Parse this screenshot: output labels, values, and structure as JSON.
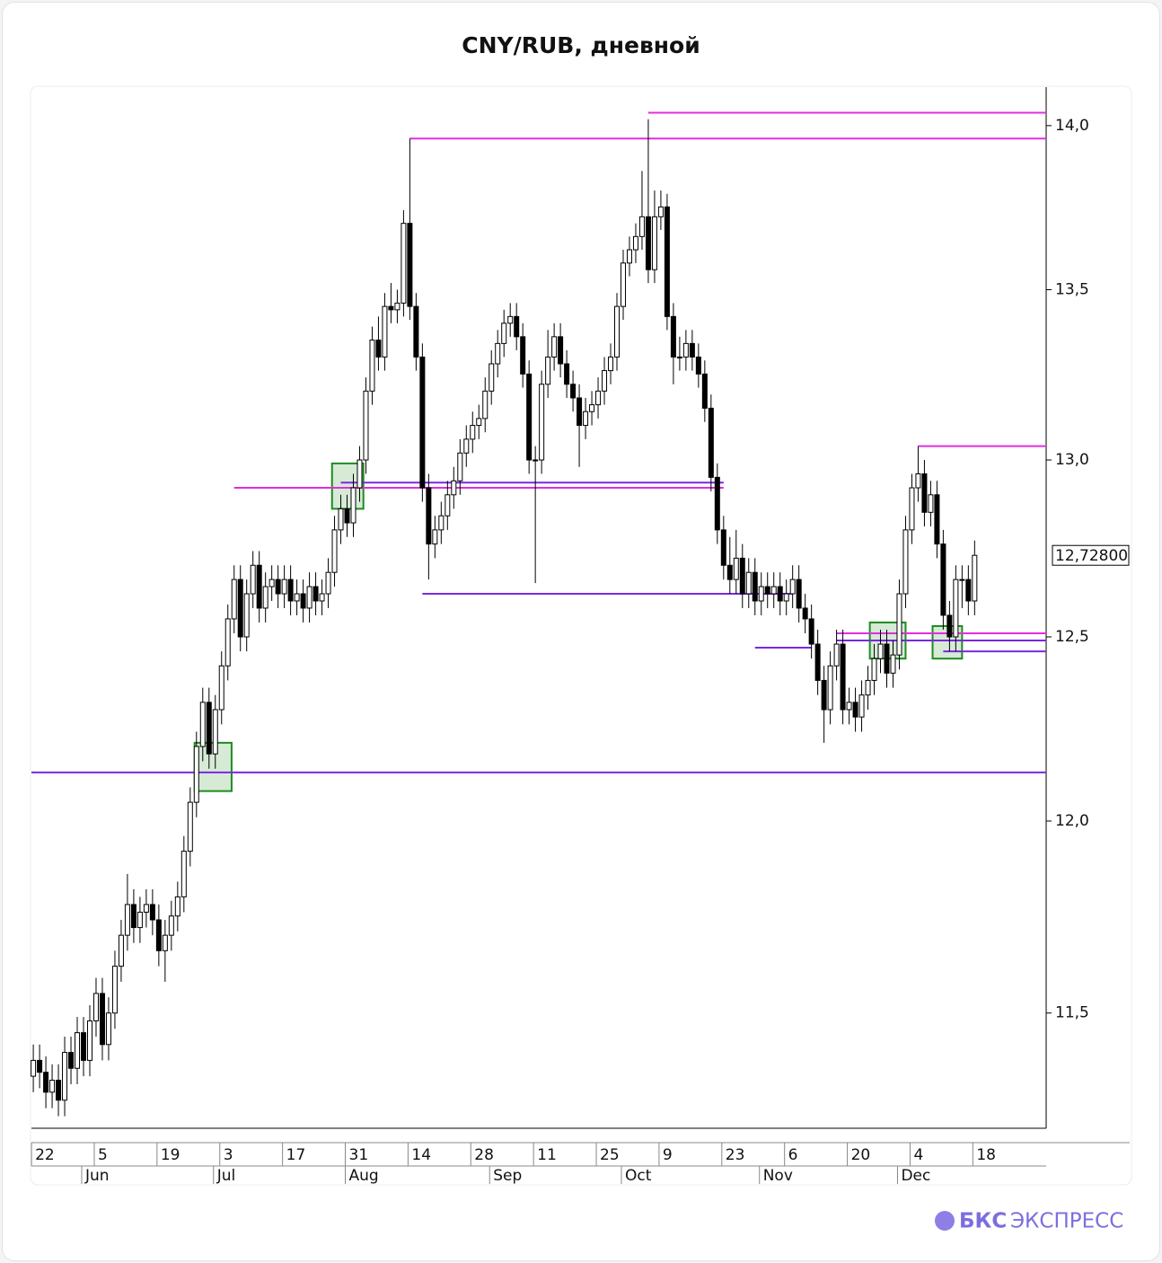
{
  "chart_data": {
    "type": "candlestick",
    "title": "CNY/RUB, дневной",
    "log_scale": true,
    "ylim": [
      11.21,
      14.12
    ],
    "xlim": [
      -0.3,
      161.4
    ],
    "yticks": [
      {
        "value": 11.5,
        "label": "11,5"
      },
      {
        "value": 12.0,
        "label": "12,0"
      },
      {
        "value": 12.5,
        "label": "12,5"
      },
      {
        "value": 13.0,
        "label": "13,0"
      },
      {
        "value": 13.5,
        "label": "13,5"
      },
      {
        "value": 14.0,
        "label": "14,0"
      }
    ],
    "xticks": [
      {
        "value": 0,
        "label": "22"
      },
      {
        "value": 10,
        "label": "5"
      },
      {
        "value": 20,
        "label": "19"
      },
      {
        "value": 30,
        "label": "3"
      },
      {
        "value": 40,
        "label": "17"
      },
      {
        "value": 50,
        "label": "31"
      },
      {
        "value": 60,
        "label": "14"
      },
      {
        "value": 70,
        "label": "28"
      },
      {
        "value": 80,
        "label": "11"
      },
      {
        "value": 90,
        "label": "25"
      },
      {
        "value": 100,
        "label": "9"
      },
      {
        "value": 110,
        "label": "23"
      },
      {
        "value": 120,
        "label": "6"
      },
      {
        "value": 130,
        "label": "20"
      },
      {
        "value": 140,
        "label": "4"
      },
      {
        "value": 150,
        "label": "18"
      }
    ],
    "month_ticks": [
      {
        "value": 8,
        "label": "Jun"
      },
      {
        "value": 29,
        "label": "Jul"
      },
      {
        "value": 50,
        "label": "Aug"
      },
      {
        "value": 73,
        "label": "Sep"
      },
      {
        "value": 94,
        "label": "Oct"
      },
      {
        "value": 116,
        "label": "Nov"
      },
      {
        "value": 138,
        "label": "Dec"
      }
    ],
    "up_color": "#ffffff",
    "down_color": "#000000",
    "open": [
      11.34,
      11.38,
      11.35,
      11.3,
      11.33,
      11.28,
      11.4,
      11.36,
      11.45,
      11.38,
      11.48,
      11.55,
      11.42,
      11.5,
      11.62,
      11.7,
      11.78,
      11.72,
      11.76,
      11.78,
      11.74,
      11.66,
      11.7,
      11.75,
      11.8,
      11.92,
      12.05,
      12.2,
      12.32,
      12.18,
      12.3,
      12.42,
      12.55,
      12.66,
      12.5,
      12.62,
      12.7,
      12.58,
      12.64,
      12.66,
      12.62,
      12.66,
      12.6,
      12.62,
      12.58,
      12.64,
      12.6,
      12.62,
      12.68,
      12.8,
      12.86,
      12.82,
      12.92,
      13.0,
      13.2,
      13.35,
      13.3,
      13.45,
      13.44,
      13.46,
      13.7,
      13.45,
      13.3,
      12.92,
      12.76,
      12.8,
      12.84,
      12.9,
      12.94,
      13.02,
      13.06,
      13.1,
      13.12,
      13.2,
      13.28,
      13.34,
      13.4,
      13.42,
      13.36,
      13.25,
      13.0,
      13.0,
      13.22,
      13.3,
      13.36,
      13.28,
      13.22,
      13.18,
      13.1,
      13.14,
      13.16,
      13.2,
      13.26,
      13.3,
      13.45,
      13.58,
      13.62,
      13.66,
      13.72,
      13.56,
      13.72,
      13.75,
      13.42,
      13.3,
      13.3,
      13.34,
      13.3,
      13.25,
      13.15,
      12.95,
      12.8,
      12.7,
      12.66,
      12.72,
      12.62,
      12.68,
      12.6,
      12.64,
      12.62,
      12.64,
      12.6,
      12.62,
      12.66,
      12.58,
      12.55,
      12.48,
      12.38,
      12.3,
      12.42,
      12.48,
      12.3,
      12.32,
      12.28,
      12.34,
      12.38,
      12.44,
      12.48,
      12.4,
      12.45,
      12.62,
      12.8,
      12.92,
      12.96,
      12.85,
      12.9,
      12.76,
      12.56,
      12.5,
      12.66,
      12.66,
      12.6
    ],
    "high": [
      11.42,
      11.42,
      11.39,
      11.37,
      11.37,
      11.44,
      11.44,
      11.49,
      11.49,
      11.52,
      11.59,
      11.59,
      11.54,
      11.66,
      11.74,
      11.86,
      11.82,
      11.8,
      11.82,
      11.82,
      11.78,
      11.74,
      11.79,
      11.84,
      11.96,
      12.09,
      12.24,
      12.36,
      12.36,
      12.34,
      12.46,
      12.59,
      12.7,
      12.7,
      12.66,
      12.74,
      12.74,
      12.68,
      12.7,
      12.7,
      12.7,
      12.7,
      12.66,
      12.66,
      12.68,
      12.68,
      12.66,
      12.72,
      12.84,
      12.9,
      12.9,
      12.96,
      13.04,
      13.24,
      13.39,
      13.42,
      13.49,
      13.52,
      13.5,
      13.74,
      13.96,
      13.49,
      13.34,
      12.96,
      12.84,
      12.88,
      12.94,
      12.98,
      13.06,
      13.1,
      13.14,
      13.16,
      13.24,
      13.32,
      13.38,
      13.44,
      13.46,
      13.46,
      13.4,
      13.29,
      13.04,
      13.26,
      13.38,
      13.4,
      13.4,
      13.32,
      13.26,
      13.22,
      13.18,
      13.2,
      13.24,
      13.3,
      13.34,
      13.49,
      13.62,
      13.66,
      13.7,
      13.86,
      14.02,
      13.8,
      13.8,
      13.79,
      13.46,
      13.36,
      13.38,
      13.38,
      13.34,
      13.29,
      13.19,
      12.99,
      12.84,
      12.78,
      12.8,
      12.76,
      12.72,
      12.72,
      12.68,
      12.68,
      12.68,
      12.68,
      12.66,
      12.7,
      12.7,
      12.62,
      12.59,
      12.52,
      12.42,
      12.46,
      12.52,
      12.52,
      12.36,
      12.36,
      12.38,
      12.42,
      12.48,
      12.52,
      12.52,
      12.49,
      12.66,
      12.84,
      12.96,
      13.04,
      13.0,
      12.94,
      12.94,
      12.8,
      12.6,
      12.7,
      12.7,
      12.7,
      12.77
    ],
    "low": [
      11.3,
      11.31,
      11.26,
      11.26,
      11.24,
      11.24,
      11.32,
      11.32,
      11.34,
      11.34,
      11.44,
      11.38,
      11.38,
      11.46,
      11.58,
      11.66,
      11.68,
      11.68,
      11.72,
      11.7,
      11.62,
      11.58,
      11.66,
      11.71,
      11.76,
      11.88,
      12.01,
      12.16,
      12.14,
      12.14,
      12.26,
      12.38,
      12.51,
      12.46,
      12.46,
      12.58,
      12.54,
      12.54,
      12.6,
      12.58,
      12.58,
      12.56,
      12.56,
      12.54,
      12.54,
      12.56,
      12.56,
      12.58,
      12.64,
      12.76,
      12.78,
      12.78,
      12.88,
      12.96,
      13.16,
      13.26,
      13.26,
      13.4,
      13.4,
      13.42,
      13.41,
      13.26,
      12.88,
      12.66,
      12.72,
      12.76,
      12.8,
      12.86,
      12.9,
      12.98,
      13.02,
      13.06,
      13.08,
      13.16,
      13.24,
      13.3,
      13.36,
      13.32,
      13.21,
      12.96,
      12.65,
      12.96,
      13.18,
      13.26,
      13.24,
      13.18,
      13.14,
      12.98,
      13.06,
      13.1,
      13.12,
      13.16,
      13.22,
      13.26,
      13.41,
      13.54,
      13.58,
      13.62,
      13.52,
      13.52,
      13.68,
      13.38,
      13.22,
      13.26,
      13.26,
      13.26,
      13.21,
      13.11,
      12.91,
      12.76,
      12.66,
      12.62,
      12.62,
      12.58,
      12.58,
      12.56,
      12.56,
      12.58,
      12.58,
      12.56,
      12.56,
      12.58,
      12.54,
      12.51,
      12.44,
      12.34,
      12.21,
      12.26,
      12.38,
      12.26,
      12.26,
      12.24,
      12.24,
      12.3,
      12.34,
      12.4,
      12.36,
      12.36,
      12.41,
      12.58,
      12.76,
      12.88,
      12.81,
      12.81,
      12.72,
      12.52,
      12.46,
      12.46,
      12.58,
      12.56,
      12.56
    ],
    "close": [
      11.38,
      11.35,
      11.3,
      11.33,
      11.28,
      11.4,
      11.36,
      11.45,
      11.38,
      11.48,
      11.55,
      11.42,
      11.5,
      11.62,
      11.7,
      11.78,
      11.72,
      11.76,
      11.78,
      11.74,
      11.66,
      11.7,
      11.75,
      11.8,
      11.92,
      12.05,
      12.2,
      12.32,
      12.18,
      12.3,
      12.42,
      12.55,
      12.66,
      12.5,
      12.62,
      12.7,
      12.58,
      12.64,
      12.66,
      12.62,
      12.66,
      12.6,
      12.62,
      12.58,
      12.64,
      12.6,
      12.62,
      12.68,
      12.8,
      12.86,
      12.82,
      12.92,
      13.0,
      13.2,
      13.35,
      13.3,
      13.45,
      13.44,
      13.46,
      13.7,
      13.45,
      13.3,
      12.92,
      12.76,
      12.8,
      12.84,
      12.9,
      12.94,
      13.02,
      13.06,
      13.1,
      13.12,
      13.2,
      13.28,
      13.34,
      13.4,
      13.42,
      13.36,
      13.25,
      13.0,
      13.0,
      13.22,
      13.3,
      13.36,
      13.28,
      13.22,
      13.18,
      13.1,
      13.14,
      13.16,
      13.2,
      13.26,
      13.3,
      13.45,
      13.58,
      13.62,
      13.66,
      13.72,
      13.56,
      13.72,
      13.75,
      13.42,
      13.3,
      13.3,
      13.34,
      13.3,
      13.25,
      13.15,
      12.95,
      12.8,
      12.7,
      12.66,
      12.72,
      12.62,
      12.68,
      12.6,
      12.64,
      12.62,
      12.64,
      12.6,
      12.62,
      12.66,
      12.58,
      12.55,
      12.48,
      12.38,
      12.3,
      12.42,
      12.48,
      12.3,
      12.32,
      12.28,
      12.34,
      12.38,
      12.44,
      12.48,
      12.4,
      12.45,
      12.62,
      12.8,
      12.92,
      12.96,
      12.85,
      12.9,
      12.76,
      12.56,
      12.5,
      12.66,
      12.66,
      12.6,
      12.728
    ],
    "levels": [
      {
        "value": 14.04,
        "start": 98,
        "color": "#e02ee0"
      },
      {
        "value": 13.96,
        "start": 60,
        "color": "#e02ee0"
      },
      {
        "value": 12.92,
        "start": 32,
        "end": 110,
        "color": "#e02ee0"
      },
      {
        "value": 12.935,
        "start": 49,
        "end": 110,
        "color": "#7a28e0"
      },
      {
        "value": 12.62,
        "start": 62,
        "end": 121,
        "color": "#7a28e0"
      },
      {
        "value": 12.47,
        "start": 115,
        "end": 124,
        "color": "#7a28e0"
      },
      {
        "value": 13.04,
        "start": 141,
        "color": "#e02ee0"
      },
      {
        "value": 12.51,
        "start": 128,
        "color": "#e02ee0"
      },
      {
        "value": 12.49,
        "start": 128,
        "color": "#7a28e0"
      },
      {
        "value": 12.46,
        "start": 145,
        "color": "#7a28e0"
      },
      {
        "value": 12.13,
        "color": "#7a28e0"
      }
    ],
    "zones": [
      {
        "x": [
          25.7,
          31.6
        ],
        "y": [
          12.08,
          12.21
        ]
      },
      {
        "x": [
          47.6,
          52.6
        ],
        "y": [
          12.86,
          12.99
        ]
      },
      {
        "x": [
          133.3,
          139
        ],
        "y": [
          12.44,
          12.54
        ]
      },
      {
        "x": [
          143.3,
          148
        ],
        "y": [
          12.44,
          12.53
        ]
      }
    ],
    "zone_color": "#1e8c1e",
    "last_price": {
      "value": 12.728,
      "label": "12,72800"
    }
  },
  "brand": {
    "bold": "БКС",
    "rest": "ЭКСПРЕСС"
  }
}
